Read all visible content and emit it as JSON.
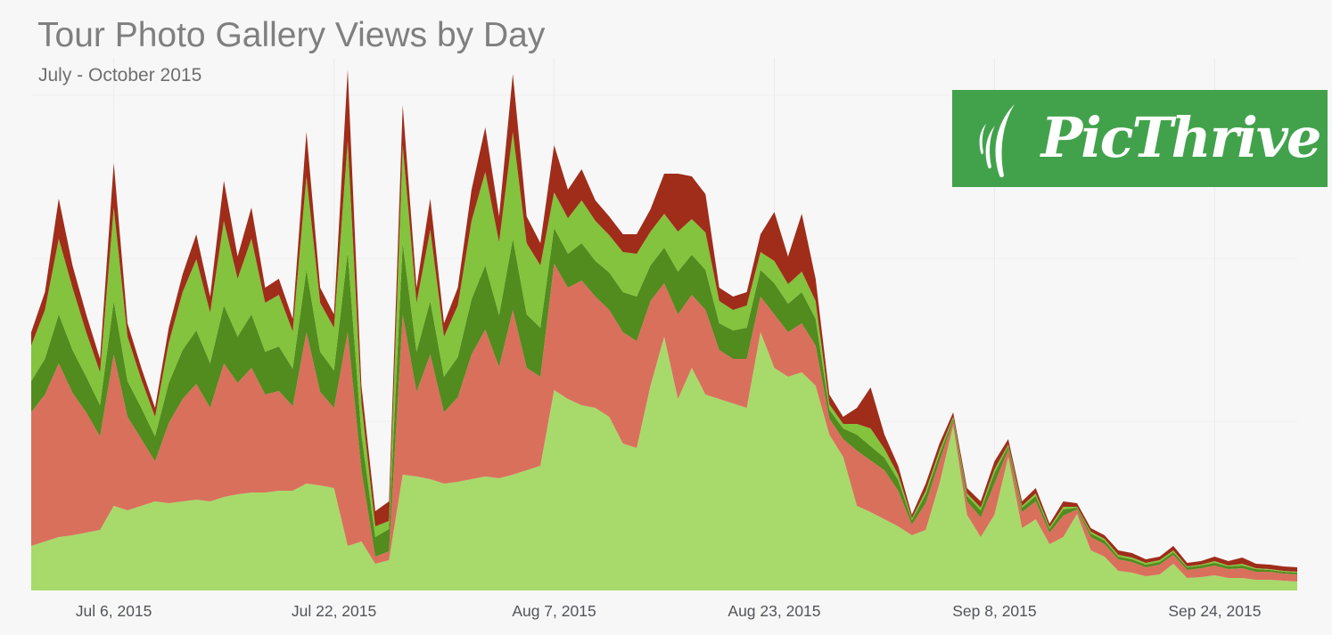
{
  "page": {
    "background_color": "#f7f7f7",
    "gridline_color": "#ececec"
  },
  "header": {
    "title": "Tour Photo Gallery Views by Day",
    "subtitle": "July - October 2015"
  },
  "logo": {
    "text": "PicThrive",
    "background_color": "#42a24c",
    "text_color": "#ffffff",
    "icon": "grass-icon"
  },
  "chart_data": {
    "type": "area",
    "stacked": true,
    "title": "Tour Photo Gallery Views by Day",
    "subtitle": "July - October 2015",
    "x_start_date": "2015-06-30",
    "x_end_date": "2015-09-30",
    "x_days_count": 93,
    "x_tick_day_indices": [
      6,
      22,
      38,
      54,
      70,
      86
    ],
    "x_tick_labels": [
      "Jul 6, 2015",
      "Jul 22, 2015",
      "Aug 7, 2015",
      "Aug 23, 2015",
      "Sep 8, 2015",
      "Sep 24, 2015"
    ],
    "xlabel": "",
    "ylabel": "",
    "y_axis": {
      "labels_visible": false,
      "min": 0,
      "max": 650,
      "gridline_spacing_units": 184
    },
    "grid": true,
    "legend": "none",
    "series": [
      {
        "name": "light-green",
        "color": "#a7da6b",
        "values": [
          50,
          55,
          60,
          62,
          65,
          68,
          95,
          90,
          95,
          100,
          98,
          100,
          102,
          100,
          105,
          108,
          110,
          110,
          112,
          112,
          120,
          118,
          115,
          50,
          55,
          30,
          34,
          130,
          128,
          125,
          120,
          122,
          125,
          128,
          126,
          130,
          135,
          140,
          225,
          215,
          208,
          205,
          195,
          165,
          160,
          230,
          285,
          215,
          250,
          220,
          215,
          210,
          205,
          290,
          250,
          240,
          245,
          230,
          175,
          150,
          95,
          88,
          80,
          72,
          62,
          68,
          120,
          185,
          85,
          60,
          85,
          150,
          70,
          80,
          52,
          60,
          86,
          45,
          38,
          22,
          20,
          16,
          18,
          30,
          14,
          15,
          17,
          14,
          14,
          12,
          12,
          11,
          10
        ]
      },
      {
        "name": "salmon",
        "color": "#d9705c",
        "values": [
          150,
          165,
          195,
          160,
          135,
          105,
          170,
          105,
          75,
          45,
          90,
          115,
          130,
          105,
          150,
          125,
          140,
          110,
          112,
          95,
          170,
          105,
          90,
          240,
          80,
          8,
          10,
          180,
          95,
          140,
          80,
          95,
          140,
          165,
          125,
          185,
          115,
          100,
          142,
          125,
          140,
          125,
          120,
          125,
          120,
          95,
          60,
          95,
          82,
          95,
          55,
          50,
          55,
          40,
          60,
          50,
          55,
          45,
          18,
          20,
          62,
          58,
          55,
          40,
          12,
          30,
          25,
          5,
          15,
          22,
          35,
          8,
          18,
          20,
          13,
          24,
          5,
          15,
          14,
          13,
          12,
          10,
          11,
          10,
          9,
          10,
          11,
          10,
          11,
          9,
          9,
          8,
          8
        ]
      },
      {
        "name": "dark-green",
        "color": "#528b1e",
        "values": [
          35,
          40,
          55,
          48,
          40,
          35,
          60,
          40,
          35,
          28,
          45,
          55,
          60,
          50,
          65,
          52,
          60,
          48,
          50,
          42,
          70,
          45,
          42,
          90,
          40,
          22,
          25,
          80,
          45,
          60,
          40,
          45,
          62,
          72,
          58,
          80,
          60,
          55,
          40,
          38,
          42,
          40,
          42,
          45,
          50,
          40,
          40,
          48,
          45,
          45,
          30,
          32,
          35,
          30,
          35,
          32,
          35,
          30,
          10,
          12,
          18,
          16,
          14,
          12,
          5,
          10,
          8,
          3,
          6,
          8,
          12,
          4,
          5,
          6,
          4,
          7,
          2,
          4,
          4,
          3,
          3,
          3,
          3,
          3,
          3,
          3,
          3,
          3,
          3,
          3,
          2,
          2,
          2
        ]
      },
      {
        "name": "medium-green",
        "color": "#83c33d",
        "values": [
          40,
          55,
          85,
          70,
          50,
          37,
          105,
          50,
          32,
          22,
          45,
          65,
          80,
          57,
          95,
          65,
          85,
          55,
          58,
          42,
          105,
          55,
          48,
          125,
          35,
          12,
          9,
          110,
          55,
          80,
          45,
          58,
          88,
          105,
          82,
          120,
          80,
          70,
          40,
          40,
          48,
          45,
          42,
          45,
          48,
          38,
          38,
          45,
          40,
          42,
          25,
          23,
          25,
          20,
          25,
          22,
          23,
          20,
          6,
          5,
          12,
          20,
          10,
          6,
          2,
          4,
          4,
          2,
          3,
          3,
          4,
          2,
          2,
          3,
          2,
          3,
          1,
          2,
          2,
          2,
          2,
          2,
          2,
          2,
          1,
          1,
          2,
          1,
          2,
          1,
          1,
          1,
          1
        ]
      },
      {
        "name": "dark-red",
        "color": "#a02c1a",
        "values": [
          15,
          20,
          45,
          25,
          20,
          15,
          50,
          15,
          13,
          10,
          17,
          20,
          28,
          18,
          45,
          25,
          35,
          17,
          18,
          14,
          50,
          17,
          15,
          80,
          20,
          17,
          22,
          45,
          17,
          35,
          15,
          20,
          35,
          50,
          29,
          65,
          30,
          25,
          53,
          32,
          35,
          23,
          21,
          20,
          22,
          25,
          45,
          65,
          48,
          43,
          15,
          15,
          15,
          20,
          55,
          31,
          65,
          25,
          11,
          8,
          18,
          46,
          16,
          10,
          4,
          8,
          8,
          5,
          6,
          7,
          9,
          6,
          5,
          6,
          4,
          6,
          4,
          4,
          4,
          5,
          5,
          4,
          4,
          5,
          4,
          4,
          5,
          5,
          7,
          5,
          5,
          5,
          5
        ]
      }
    ]
  }
}
